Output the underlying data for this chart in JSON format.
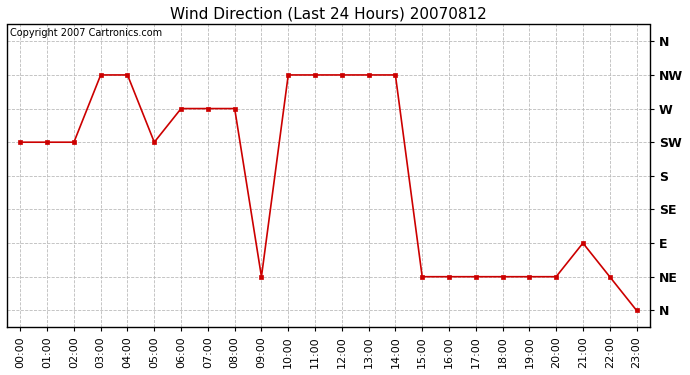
{
  "title": "Wind Direction (Last 24 Hours) 20070812",
  "copyright": "Copyright 2007 Cartronics.com",
  "x_labels": [
    "00:00",
    "01:00",
    "02:00",
    "03:00",
    "04:00",
    "05:00",
    "06:00",
    "07:00",
    "08:00",
    "09:00",
    "10:00",
    "11:00",
    "12:00",
    "13:00",
    "14:00",
    "15:00",
    "16:00",
    "17:00",
    "18:00",
    "19:00",
    "20:00",
    "21:00",
    "22:00",
    "23:00"
  ],
  "y_tick_labels_bottom_to_top": [
    "N",
    "NE",
    "E",
    "SE",
    "S",
    "SW",
    "W",
    "NW",
    "N"
  ],
  "data_x": [
    0,
    1,
    2,
    3,
    4,
    5,
    6,
    7,
    8,
    9,
    10,
    11,
    12,
    13,
    14,
    15,
    16,
    17,
    18,
    19,
    20,
    21,
    22,
    23
  ],
  "data_y": [
    5,
    5,
    5,
    7,
    7,
    5,
    6,
    6,
    6,
    1,
    7,
    7,
    7,
    7,
    7,
    1,
    1,
    1,
    1,
    1,
    1,
    2,
    1,
    0
  ],
  "line_color": "#cc0000",
  "marker_color": "#cc0000",
  "grid_color": "#bbbbbb",
  "bg_color": "#ffffff",
  "title_fontsize": 11,
  "copyright_fontsize": 7,
  "tick_fontsize": 8,
  "ylabel_fontsize": 9
}
